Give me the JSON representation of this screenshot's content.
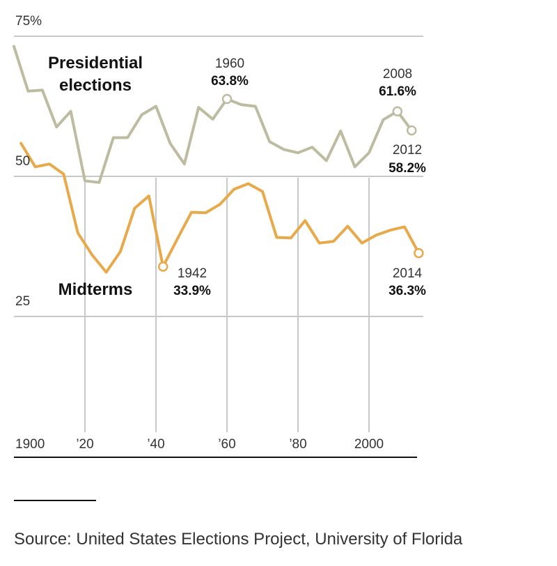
{
  "chart_data": {
    "type": "line",
    "x_ticks": [
      {
        "value": 1900,
        "label": "1900"
      },
      {
        "value": 1920,
        "label": "’20"
      },
      {
        "value": 1940,
        "label": "’40"
      },
      {
        "value": 1960,
        "label": "’60"
      },
      {
        "value": 1980,
        "label": "’80"
      },
      {
        "value": 2000,
        "label": "2000"
      }
    ],
    "y_ticks": [
      {
        "value": 75,
        "label": "75%"
      },
      {
        "value": 50,
        "label": "50"
      },
      {
        "value": 25,
        "label": "25"
      }
    ],
    "xlim": [
      1899,
      2015
    ],
    "ylim": [
      0,
      75
    ],
    "series": [
      {
        "name": "Presidential elections",
        "label_lines": [
          "Presidential",
          "elections"
        ],
        "color": "#bdbba0",
        "x": [
          1900,
          1904,
          1908,
          1912,
          1916,
          1920,
          1924,
          1928,
          1932,
          1936,
          1940,
          1944,
          1948,
          1952,
          1956,
          1960,
          1964,
          1968,
          1972,
          1976,
          1980,
          1984,
          1988,
          1992,
          1996,
          2000,
          2004,
          2008,
          2012
        ],
        "y": [
          73.2,
          65.2,
          65.4,
          58.8,
          61.6,
          49.2,
          48.9,
          56.9,
          56.9,
          61.0,
          62.5,
          55.9,
          52.2,
          62.3,
          60.2,
          63.8,
          62.8,
          62.5,
          56.2,
          54.8,
          54.2,
          55.2,
          52.8,
          58.1,
          51.7,
          54.2,
          60.1,
          61.6,
          58.2
        ]
      },
      {
        "name": "Midterms",
        "label_lines": [
          "Midterms"
        ],
        "color": "#e8a94a",
        "x": [
          1902,
          1906,
          1910,
          1914,
          1918,
          1922,
          1926,
          1930,
          1934,
          1938,
          1942,
          1946,
          1950,
          1954,
          1958,
          1962,
          1966,
          1970,
          1974,
          1978,
          1982,
          1986,
          1990,
          1994,
          1998,
          2002,
          2006,
          2010,
          2014
        ],
        "y": [
          55.9,
          51.7,
          52.2,
          50.4,
          39.9,
          36.0,
          32.9,
          36.6,
          44.3,
          46.5,
          33.9,
          38.8,
          43.6,
          43.5,
          45.0,
          47.7,
          48.7,
          47.3,
          39.1,
          39.0,
          42.1,
          38.1,
          38.4,
          41.1,
          38.1,
          39.5,
          40.4,
          41.0,
          36.3
        ]
      }
    ],
    "annotations": [
      {
        "series": 0,
        "x": 1960,
        "year": "1960",
        "value": "63.8%",
        "position": "above"
      },
      {
        "series": 0,
        "x": 2008,
        "year": "2008",
        "value": "61.6%",
        "position": "above"
      },
      {
        "series": 0,
        "x": 2012,
        "year": "2012",
        "value": "58.2%",
        "position": "below"
      },
      {
        "series": 1,
        "x": 1942,
        "year": "1942",
        "value": "33.9%",
        "position": "right"
      },
      {
        "series": 1,
        "x": 2014,
        "year": "2014",
        "value": "36.3%",
        "position": "below"
      }
    ],
    "grid": {
      "horizontal": true,
      "vertical": true
    }
  },
  "source": "Source: United States Elections Project, University of Florida"
}
